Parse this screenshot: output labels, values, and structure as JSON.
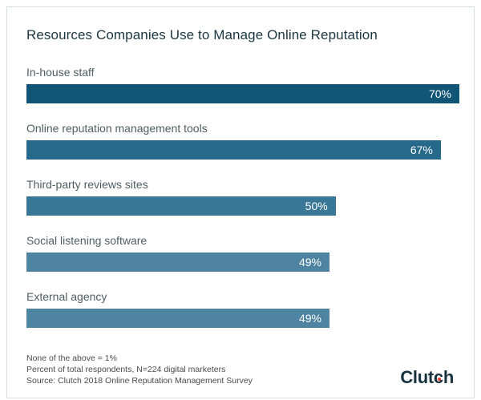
{
  "chart_data": {
    "type": "bar",
    "orientation": "horizontal",
    "title": "Resources Companies Use to Manage Online Reputation",
    "categories": [
      "In-house staff",
      "Online reputation management tools",
      "Third-party reviews sites",
      "Social listening software",
      "External agency"
    ],
    "values": [
      70,
      67,
      50,
      49,
      49
    ],
    "value_labels": [
      "70%",
      "67%",
      "50%",
      "49%",
      "49%"
    ],
    "bar_colors": [
      "#115677",
      "#26698b",
      "#3a7695",
      "#4e84a1",
      "#4e84a1"
    ],
    "xlim": [
      0,
      70
    ],
    "grid": false,
    "legend": false,
    "value_label_position": "inside-end",
    "value_label_color": "#ffffff"
  },
  "footnotes": [
    "None of the above = 1%",
    "Percent of total respondents, N=224 digital marketers",
    "Source: Clutch 2018 Online Reputation Management Survey"
  ],
  "branding": {
    "logo_pre": "Clut",
    "logo_c": "c",
    "logo_post": "h",
    "logo_color": "#17313e",
    "logo_dot_color": "#e8402f"
  }
}
